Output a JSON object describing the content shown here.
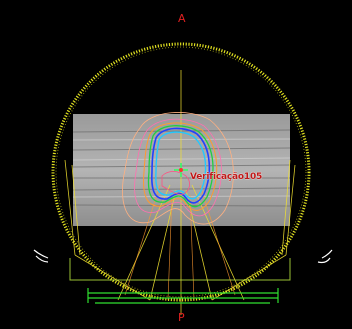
{
  "orientation": {
    "top": "A",
    "bottom": "P"
  },
  "roi": {
    "label": "Verificação105"
  },
  "colors": {
    "background": "#000000",
    "gantry_ring": "#e0e020",
    "orientation_text": "#e02020",
    "roi_label": "#c01818",
    "isodose_inner": "#22c8ff",
    "isodose_blue": "#2040ff",
    "isodose_green": "#20d040",
    "isodose_orange": "#ff9a30",
    "isodose_pink": "#ff70b0",
    "isodose_outer": "#ffb080",
    "couch": "#30e030",
    "beams": "#f0e030",
    "isocenter": "#30ff60"
  }
}
